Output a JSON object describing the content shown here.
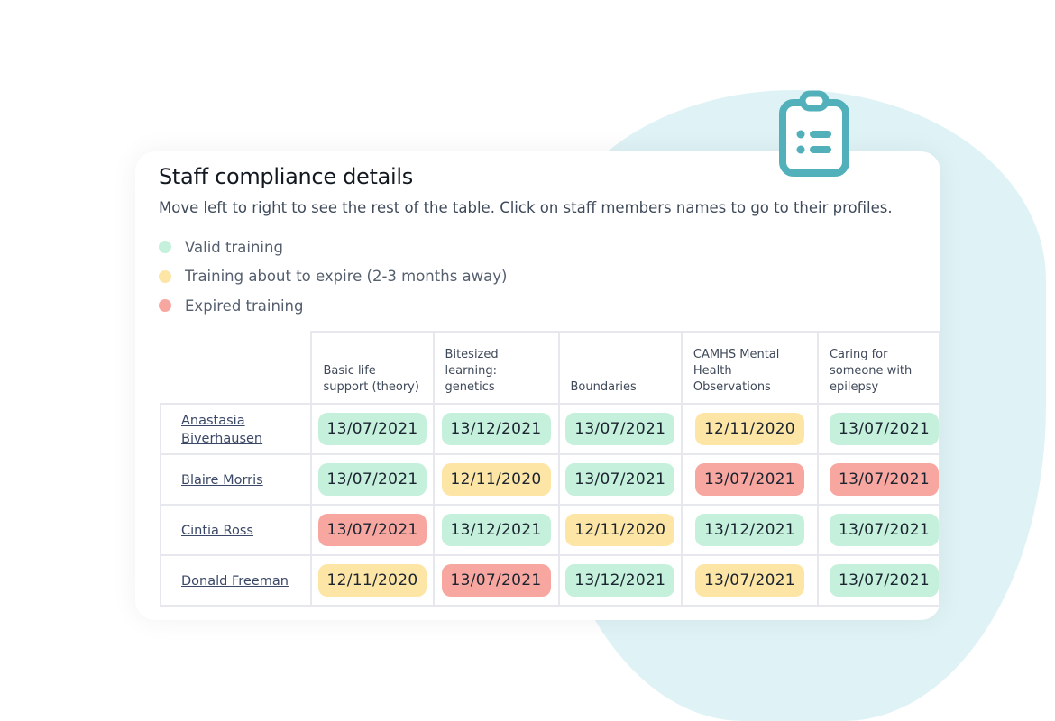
{
  "title": "Staff compliance details",
  "subtitle": "Move left to right to see the rest of the table. Click on staff members names to go to their profiles.",
  "legend": [
    {
      "label": "Valid training",
      "color": "#c5f0dc"
    },
    {
      "label": "Training about to expire (2-3 months away)",
      "color": "#fde5a6"
    },
    {
      "label": "Expired training",
      "color": "#f8a7a0"
    }
  ],
  "colors": {
    "valid": "#c5f0dc",
    "expiring": "#fde5a6",
    "expired": "#f8a7a0",
    "accent": "#52b0ba"
  },
  "table": {
    "columns": [
      "Basic life support (theory)",
      "Bitesized learning: genetics",
      "Boundaries",
      "CAMHS Mental Health Observations",
      "Caring for someone with epilepsy"
    ],
    "rows": [
      {
        "name": "Anastasia Biverhausen",
        "cells": [
          {
            "date": "13/07/2021",
            "status": "valid"
          },
          {
            "date": "13/12/2021",
            "status": "valid"
          },
          {
            "date": "13/07/2021",
            "status": "valid"
          },
          {
            "date": "12/11/2020",
            "status": "expiring"
          },
          {
            "date": "13/07/2021",
            "status": "valid"
          }
        ]
      },
      {
        "name": "Blaire Morris",
        "cells": [
          {
            "date": "13/07/2021",
            "status": "valid"
          },
          {
            "date": "12/11/2020",
            "status": "expiring"
          },
          {
            "date": "13/07/2021",
            "status": "valid"
          },
          {
            "date": "13/07/2021",
            "status": "expired"
          },
          {
            "date": "13/07/2021",
            "status": "expired"
          }
        ]
      },
      {
        "name": "Cintia Ross",
        "cells": [
          {
            "date": "13/07/2021",
            "status": "expired"
          },
          {
            "date": "13/12/2021",
            "status": "valid"
          },
          {
            "date": "12/11/2020",
            "status": "expiring"
          },
          {
            "date": "13/12/2021",
            "status": "valid"
          },
          {
            "date": "13/07/2021",
            "status": "valid"
          }
        ]
      },
      {
        "name": "Donald Freeman",
        "cells": [
          {
            "date": "12/11/2020",
            "status": "expiring"
          },
          {
            "date": "13/07/2021",
            "status": "expired"
          },
          {
            "date": "13/12/2021",
            "status": "valid"
          },
          {
            "date": "13/07/2021",
            "status": "expiring"
          },
          {
            "date": "13/07/2021",
            "status": "valid"
          }
        ]
      }
    ]
  }
}
